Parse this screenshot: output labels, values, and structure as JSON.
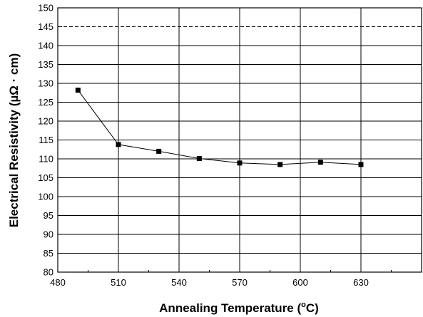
{
  "chart_data": {
    "type": "line",
    "xlabel": {
      "prefix": "Annealing Temperature (",
      "sup": "o",
      "suffix": "C)"
    },
    "ylabel": "Electrical Resistivity (µΩ · cm)",
    "xlim": [
      480,
      660
    ],
    "ylim": [
      80,
      150
    ],
    "x_ticks": [
      480,
      510,
      540,
      570,
      600,
      630
    ],
    "y_ticks": [
      80,
      85,
      90,
      95,
      100,
      105,
      110,
      115,
      120,
      125,
      130,
      135,
      140,
      145,
      150
    ],
    "grid": true,
    "marker": "square",
    "series": [
      {
        "x": [
          490,
          510,
          530,
          550,
          570,
          590,
          610,
          630
        ],
        "y": [
          128.2,
          113.8,
          112.0,
          110.1,
          108.9,
          108.5,
          109.1,
          108.5
        ]
      }
    ]
  }
}
